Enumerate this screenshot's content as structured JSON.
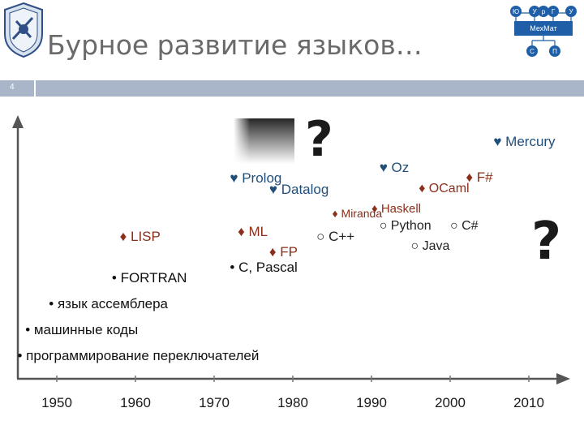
{
  "title": "Бурное развитие языков…",
  "slide_number": "4",
  "logo_right": {
    "letters": [
      "Ю",
      "У",
      "р",
      "Г",
      "У"
    ],
    "label": "МехМат",
    "bottom": [
      "С",
      "П"
    ]
  },
  "colors": {
    "axis": "#555555",
    "heart": "#1f4e79",
    "diamond": "#8b2e1a",
    "circle": "#222222",
    "bullet": "#111111",
    "bar": "#a9b6c9"
  },
  "chart_data": {
    "type": "scatter",
    "title": "",
    "xlabel": "",
    "ylabel": "",
    "x_ticks": [
      "1950",
      "1960",
      "1970",
      "1980",
      "1990",
      "2000",
      "2010"
    ],
    "xlim": [
      1945,
      2015
    ],
    "grid": false,
    "legend": "none",
    "series": [
      {
        "marker": "♥",
        "points": [
          {
            "label": "Mercury",
            "x": 2005.5
          },
          {
            "label": "Prolog",
            "x": 1972
          },
          {
            "label": "Oz",
            "x": 1991
          },
          {
            "label": "Datalog",
            "x": 1977
          }
        ]
      },
      {
        "marker": "♦",
        "points": [
          {
            "label": "F#",
            "x": 2002
          },
          {
            "label": "OCaml",
            "x": 1996
          },
          {
            "label": "Miranda",
            "x": 1985
          },
          {
            "label": "Haskell",
            "x": 1990
          },
          {
            "label": "LISP",
            "x": 1958
          },
          {
            "label": "ML",
            "x": 1973
          },
          {
            "label": "FP",
            "x": 1977
          }
        ]
      },
      {
        "marker": "○",
        "points": [
          {
            "label": "Python",
            "x": 1991
          },
          {
            "label": "C#",
            "x": 2000
          },
          {
            "label": "C++",
            "x": 1983
          },
          {
            "label": "Java",
            "x": 1995
          }
        ]
      },
      {
        "marker": "•",
        "points": [
          {
            "label": "C, Pascal",
            "x": 1972
          },
          {
            "label": "FORTRAN",
            "x": 1957
          },
          {
            "label": "язык ассемблера",
            "x": 1949
          },
          {
            "label": "машинные коды",
            "x": 1946
          },
          {
            "label": "программирование переключателей",
            "x": 1945
          }
        ]
      }
    ],
    "annotations": [
      "?",
      "?"
    ]
  }
}
